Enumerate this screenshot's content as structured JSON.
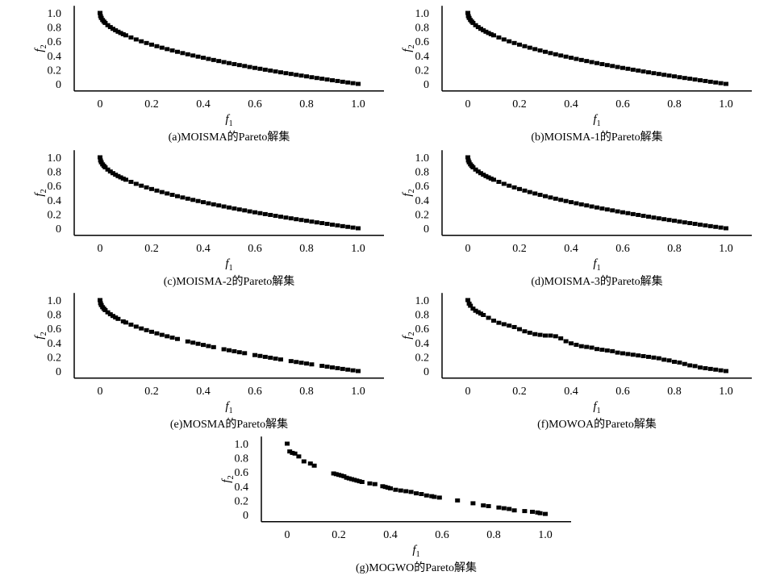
{
  "marker_color": "#000000",
  "chart_data": [
    {
      "type": "scatter",
      "title": "(a)MOISMA的Pareto解集",
      "xlabel": "f",
      "xlabel_sub": "1",
      "ylabel": "f",
      "ylabel_sub": "2",
      "xlim": [
        -0.1,
        1.1
      ],
      "ylim": [
        -0.1,
        1.1
      ],
      "xticks": [
        "0",
        "0.2",
        "0.4",
        "0.6",
        "0.8",
        "1.0"
      ],
      "yticks": [
        "0",
        "0.2",
        "0.4",
        "0.6",
        "0.8",
        "1.0"
      ],
      "grid": false,
      "x": [
        0,
        0.002,
        0.005,
        0.01,
        0.015,
        0.02,
        0.03,
        0.04,
        0.05,
        0.06,
        0.07,
        0.08,
        0.09,
        0.1,
        0.12,
        0.14,
        0.16,
        0.18,
        0.2,
        0.22,
        0.24,
        0.26,
        0.28,
        0.3,
        0.32,
        0.34,
        0.36,
        0.38,
        0.4,
        0.42,
        0.44,
        0.46,
        0.48,
        0.5,
        0.52,
        0.54,
        0.56,
        0.58,
        0.6,
        0.62,
        0.64,
        0.66,
        0.68,
        0.7,
        0.72,
        0.74,
        0.76,
        0.78,
        0.8,
        0.82,
        0.84,
        0.86,
        0.88,
        0.9,
        0.92,
        0.94,
        0.96,
        0.98,
        1.0
      ],
      "y": [
        1,
        0.955,
        0.929,
        0.9,
        0.878,
        0.859,
        0.827,
        0.8,
        0.776,
        0.755,
        0.735,
        0.717,
        0.7,
        0.684,
        0.654,
        0.626,
        0.6,
        0.576,
        0.553,
        0.531,
        0.51,
        0.49,
        0.471,
        0.452,
        0.434,
        0.417,
        0.4,
        0.384,
        0.368,
        0.352,
        0.337,
        0.322,
        0.307,
        0.293,
        0.279,
        0.265,
        0.252,
        0.238,
        0.225,
        0.213,
        0.2,
        0.188,
        0.175,
        0.163,
        0.151,
        0.14,
        0.128,
        0.117,
        0.106,
        0.094,
        0.083,
        0.073,
        0.062,
        0.051,
        0.041,
        0.03,
        0.02,
        0.01,
        0
      ]
    },
    {
      "type": "scatter",
      "title": "(b)MOISMA-1的Pareto解集",
      "xlabel": "f",
      "xlabel_sub": "1",
      "ylabel": "f",
      "ylabel_sub": "2",
      "xlim": [
        -0.1,
        1.1
      ],
      "ylim": [
        -0.1,
        1.1
      ],
      "xticks": [
        "0",
        "0.2",
        "0.4",
        "0.6",
        "0.8",
        "1.0"
      ],
      "yticks": [
        "0",
        "0.2",
        "0.4",
        "0.6",
        "0.8",
        "1.0"
      ],
      "grid": false,
      "x": [
        0,
        0.002,
        0.005,
        0.01,
        0.015,
        0.02,
        0.03,
        0.04,
        0.05,
        0.06,
        0.07,
        0.08,
        0.09,
        0.1,
        0.12,
        0.14,
        0.16,
        0.18,
        0.2,
        0.22,
        0.24,
        0.26,
        0.28,
        0.3,
        0.32,
        0.34,
        0.36,
        0.38,
        0.4,
        0.42,
        0.44,
        0.46,
        0.48,
        0.5,
        0.52,
        0.54,
        0.56,
        0.58,
        0.6,
        0.62,
        0.64,
        0.66,
        0.68,
        0.7,
        0.72,
        0.74,
        0.76,
        0.78,
        0.8,
        0.82,
        0.84,
        0.86,
        0.88,
        0.9,
        0.92,
        0.94,
        0.96,
        0.98,
        1.0
      ],
      "y": [
        1,
        0.955,
        0.929,
        0.9,
        0.878,
        0.859,
        0.827,
        0.8,
        0.776,
        0.755,
        0.735,
        0.717,
        0.7,
        0.684,
        0.654,
        0.626,
        0.6,
        0.576,
        0.553,
        0.531,
        0.51,
        0.49,
        0.471,
        0.452,
        0.434,
        0.417,
        0.4,
        0.384,
        0.368,
        0.352,
        0.337,
        0.322,
        0.307,
        0.293,
        0.279,
        0.265,
        0.252,
        0.238,
        0.225,
        0.213,
        0.2,
        0.188,
        0.175,
        0.163,
        0.151,
        0.14,
        0.128,
        0.117,
        0.106,
        0.094,
        0.083,
        0.073,
        0.062,
        0.051,
        0.041,
        0.03,
        0.02,
        0.01,
        0
      ]
    },
    {
      "type": "scatter",
      "title": "(c)MOISMA-2的Pareto解集",
      "xlabel": "f",
      "xlabel_sub": "1",
      "ylabel": "f",
      "ylabel_sub": "2",
      "xlim": [
        -0.1,
        1.1
      ],
      "ylim": [
        -0.1,
        1.1
      ],
      "xticks": [
        "0",
        "0.2",
        "0.4",
        "0.6",
        "0.8",
        "1.0"
      ],
      "yticks": [
        "0",
        "0.2",
        "0.4",
        "0.6",
        "0.8",
        "1.0"
      ],
      "grid": false,
      "x": [
        0,
        0.002,
        0.005,
        0.01,
        0.015,
        0.02,
        0.03,
        0.04,
        0.05,
        0.06,
        0.07,
        0.08,
        0.09,
        0.1,
        0.12,
        0.14,
        0.16,
        0.18,
        0.2,
        0.22,
        0.24,
        0.26,
        0.28,
        0.3,
        0.32,
        0.34,
        0.36,
        0.38,
        0.4,
        0.42,
        0.44,
        0.46,
        0.48,
        0.5,
        0.52,
        0.54,
        0.56,
        0.58,
        0.6,
        0.62,
        0.64,
        0.66,
        0.68,
        0.7,
        0.72,
        0.74,
        0.76,
        0.78,
        0.8,
        0.82,
        0.84,
        0.86,
        0.88,
        0.9,
        0.92,
        0.94,
        0.96,
        0.98,
        1.0
      ],
      "y": [
        1,
        0.955,
        0.929,
        0.9,
        0.878,
        0.859,
        0.827,
        0.8,
        0.776,
        0.755,
        0.735,
        0.717,
        0.7,
        0.684,
        0.654,
        0.626,
        0.6,
        0.576,
        0.553,
        0.531,
        0.51,
        0.49,
        0.471,
        0.452,
        0.434,
        0.417,
        0.4,
        0.384,
        0.368,
        0.352,
        0.337,
        0.322,
        0.307,
        0.293,
        0.279,
        0.265,
        0.252,
        0.238,
        0.225,
        0.213,
        0.2,
        0.188,
        0.175,
        0.163,
        0.151,
        0.14,
        0.128,
        0.117,
        0.106,
        0.094,
        0.083,
        0.073,
        0.062,
        0.051,
        0.041,
        0.03,
        0.02,
        0.01,
        0
      ]
    },
    {
      "type": "scatter",
      "title": "(d)MOISMA-3的Pareto解集",
      "xlabel": "f",
      "xlabel_sub": "1",
      "ylabel": "f",
      "ylabel_sub": "2",
      "xlim": [
        -0.1,
        1.1
      ],
      "ylim": [
        -0.1,
        1.1
      ],
      "xticks": [
        "0",
        "0.2",
        "0.4",
        "0.6",
        "0.8",
        "1.0"
      ],
      "yticks": [
        "0",
        "0.2",
        "0.4",
        "0.6",
        "0.8",
        "1.0"
      ],
      "grid": false,
      "x": [
        0,
        0.002,
        0.005,
        0.01,
        0.015,
        0.02,
        0.03,
        0.04,
        0.05,
        0.06,
        0.07,
        0.08,
        0.09,
        0.1,
        0.12,
        0.14,
        0.16,
        0.18,
        0.2,
        0.22,
        0.24,
        0.26,
        0.28,
        0.3,
        0.32,
        0.34,
        0.36,
        0.38,
        0.4,
        0.42,
        0.44,
        0.46,
        0.48,
        0.5,
        0.52,
        0.54,
        0.56,
        0.58,
        0.6,
        0.62,
        0.64,
        0.66,
        0.68,
        0.7,
        0.72,
        0.74,
        0.76,
        0.78,
        0.8,
        0.82,
        0.84,
        0.86,
        0.88,
        0.9,
        0.92,
        0.94,
        0.96,
        0.98,
        1.0
      ],
      "y": [
        1,
        0.955,
        0.929,
        0.9,
        0.878,
        0.859,
        0.827,
        0.8,
        0.776,
        0.755,
        0.735,
        0.717,
        0.7,
        0.684,
        0.654,
        0.626,
        0.6,
        0.576,
        0.553,
        0.531,
        0.51,
        0.49,
        0.471,
        0.452,
        0.434,
        0.417,
        0.4,
        0.384,
        0.368,
        0.352,
        0.337,
        0.322,
        0.307,
        0.293,
        0.279,
        0.265,
        0.252,
        0.238,
        0.225,
        0.213,
        0.2,
        0.188,
        0.175,
        0.163,
        0.151,
        0.14,
        0.128,
        0.117,
        0.106,
        0.094,
        0.083,
        0.073,
        0.062,
        0.051,
        0.041,
        0.03,
        0.02,
        0.01,
        0
      ]
    },
    {
      "type": "scatter",
      "title": "(e)MOSMA的Pareto解集",
      "xlabel": "f",
      "xlabel_sub": "1",
      "ylabel": "f",
      "ylabel_sub": "2",
      "xlim": [
        -0.1,
        1.1
      ],
      "ylim": [
        -0.1,
        1.1
      ],
      "xticks": [
        "0",
        "0.2",
        "0.4",
        "0.6",
        "0.8",
        "1.0"
      ],
      "yticks": [
        "0",
        "0.2",
        "0.4",
        "0.6",
        "0.8",
        "1.0"
      ],
      "grid": false,
      "x": [
        0,
        0.002,
        0.005,
        0.01,
        0.015,
        0.02,
        0.03,
        0.04,
        0.05,
        0.06,
        0.07,
        0.09,
        0.1,
        0.12,
        0.14,
        0.16,
        0.18,
        0.2,
        0.22,
        0.24,
        0.26,
        0.28,
        0.3,
        0.34,
        0.36,
        0.38,
        0.4,
        0.42,
        0.44,
        0.48,
        0.5,
        0.52,
        0.54,
        0.56,
        0.6,
        0.62,
        0.64,
        0.66,
        0.68,
        0.7,
        0.74,
        0.76,
        0.78,
        0.8,
        0.82,
        0.86,
        0.88,
        0.9,
        0.92,
        0.94,
        0.96,
        0.98,
        1.0
      ],
      "y": [
        1,
        0.955,
        0.929,
        0.9,
        0.878,
        0.859,
        0.827,
        0.8,
        0.776,
        0.755,
        0.735,
        0.7,
        0.684,
        0.654,
        0.626,
        0.6,
        0.576,
        0.553,
        0.531,
        0.51,
        0.49,
        0.471,
        0.452,
        0.417,
        0.4,
        0.384,
        0.368,
        0.352,
        0.337,
        0.307,
        0.293,
        0.279,
        0.265,
        0.252,
        0.225,
        0.213,
        0.2,
        0.188,
        0.175,
        0.163,
        0.14,
        0.128,
        0.117,
        0.106,
        0.094,
        0.073,
        0.062,
        0.051,
        0.041,
        0.03,
        0.02,
        0.01,
        0
      ]
    },
    {
      "type": "scatter",
      "title": "(f)MOWOA的Pareto解集",
      "xlabel": "f",
      "xlabel_sub": "1",
      "ylabel": "f",
      "ylabel_sub": "2",
      "xlim": [
        -0.1,
        1.1
      ],
      "ylim": [
        -0.1,
        1.1
      ],
      "xticks": [
        "0",
        "0.2",
        "0.4",
        "0.6",
        "0.8",
        "1.0"
      ],
      "yticks": [
        "0",
        "0.2",
        "0.4",
        "0.6",
        "0.8",
        "1.0"
      ],
      "grid": false,
      "x": [
        0,
        0.005,
        0.01,
        0.02,
        0.03,
        0.04,
        0.05,
        0.06,
        0.08,
        0.1,
        0.12,
        0.14,
        0.16,
        0.18,
        0.2,
        0.22,
        0.24,
        0.26,
        0.28,
        0.3,
        0.32,
        0.34,
        0.36,
        0.38,
        0.4,
        0.42,
        0.44,
        0.46,
        0.48,
        0.5,
        0.52,
        0.54,
        0.56,
        0.58,
        0.6,
        0.62,
        0.64,
        0.66,
        0.68,
        0.7,
        0.72,
        0.74,
        0.76,
        0.78,
        0.8,
        0.82,
        0.84,
        0.86,
        0.88,
        0.9,
        0.92,
        0.94,
        0.96,
        0.98,
        1.0
      ],
      "y": [
        1,
        0.95,
        0.92,
        0.88,
        0.85,
        0.83,
        0.81,
        0.79,
        0.75,
        0.71,
        0.68,
        0.66,
        0.64,
        0.62,
        0.59,
        0.56,
        0.54,
        0.52,
        0.51,
        0.5,
        0.5,
        0.49,
        0.46,
        0.42,
        0.39,
        0.37,
        0.35,
        0.34,
        0.33,
        0.31,
        0.3,
        0.29,
        0.28,
        0.26,
        0.25,
        0.24,
        0.23,
        0.22,
        0.21,
        0.2,
        0.19,
        0.18,
        0.16,
        0.15,
        0.13,
        0.12,
        0.1,
        0.08,
        0.07,
        0.05,
        0.04,
        0.03,
        0.02,
        0.01,
        0
      ]
    },
    {
      "type": "scatter",
      "title": "(g)MOGWO的Pareto解集",
      "xlabel": "f",
      "xlabel_sub": "1",
      "ylabel": "f",
      "ylabel_sub": "2",
      "xlim": [
        -0.1,
        1.1
      ],
      "ylim": [
        -0.1,
        1.1
      ],
      "xticks": [
        "0",
        "0.2",
        "0.4",
        "0.6",
        "0.8",
        "1.0"
      ],
      "yticks": [
        "0",
        "0.2",
        "0.4",
        "0.6",
        "0.8",
        "1.0"
      ],
      "grid": false,
      "x": [
        0,
        0.01,
        0.02,
        0.03,
        0.045,
        0.065,
        0.09,
        0.105,
        0.18,
        0.19,
        0.2,
        0.21,
        0.22,
        0.23,
        0.24,
        0.25,
        0.26,
        0.27,
        0.28,
        0.29,
        0.32,
        0.34,
        0.37,
        0.38,
        0.39,
        0.4,
        0.42,
        0.44,
        0.46,
        0.48,
        0.5,
        0.52,
        0.54,
        0.56,
        0.57,
        0.59,
        0.66,
        0.72,
        0.76,
        0.78,
        0.82,
        0.84,
        0.86,
        0.88,
        0.92,
        0.95,
        0.97,
        0.98,
        1.0
      ],
      "y": [
        1,
        0.89,
        0.87,
        0.86,
        0.82,
        0.75,
        0.72,
        0.69,
        0.58,
        0.57,
        0.56,
        0.55,
        0.54,
        0.52,
        0.51,
        0.5,
        0.49,
        0.48,
        0.47,
        0.46,
        0.44,
        0.43,
        0.4,
        0.39,
        0.38,
        0.37,
        0.35,
        0.34,
        0.33,
        0.32,
        0.3,
        0.29,
        0.27,
        0.26,
        0.25,
        0.24,
        0.2,
        0.16,
        0.13,
        0.12,
        0.1,
        0.09,
        0.08,
        0.06,
        0.05,
        0.04,
        0.03,
        0.02,
        0.01
      ]
    }
  ]
}
